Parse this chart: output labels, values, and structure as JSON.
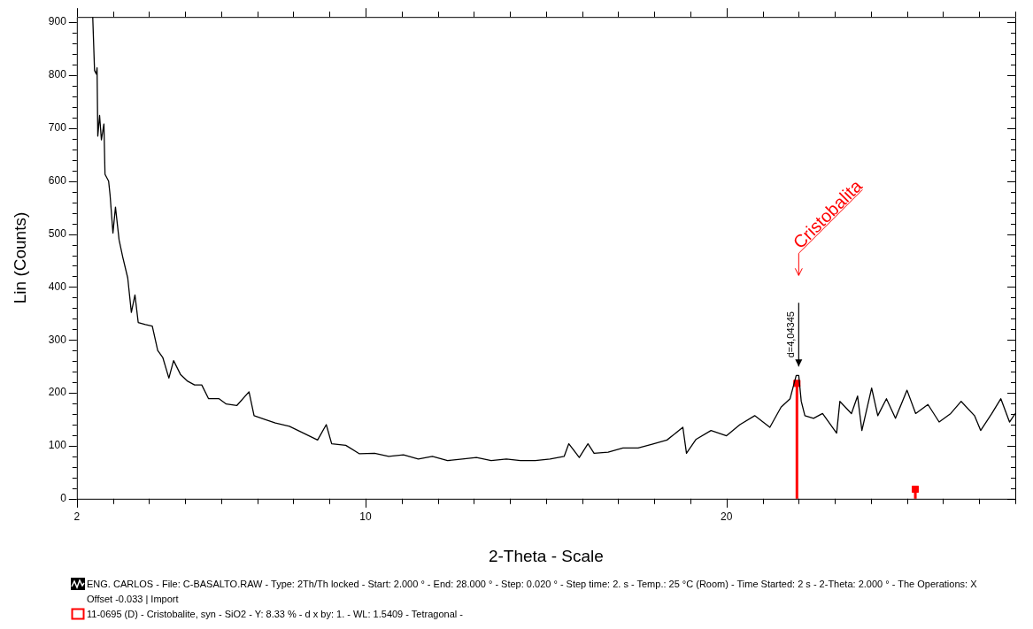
{
  "chart_data": {
    "type": "line",
    "xlabel": "2-Theta - Scale",
    "ylabel": "Lin (Counts)",
    "legend": "bottom",
    "grid": false,
    "xlim": [
      2,
      28
    ],
    "ylim": [
      0,
      910
    ],
    "xticks": [
      2,
      {
        "value": 3,
        "label": null
      },
      {
        "value": 4,
        "label": null
      },
      {
        "value": 5,
        "label": null
      },
      {
        "value": 6,
        "label": null
      },
      {
        "value": 7,
        "label": null
      },
      {
        "value": 8,
        "label": null
      },
      {
        "value": 9,
        "label": null
      },
      10,
      {
        "value": 11,
        "label": null
      },
      {
        "value": 12,
        "label": null
      },
      {
        "value": 13,
        "label": null
      },
      {
        "value": 14,
        "label": null
      },
      {
        "value": 15,
        "label": null
      },
      {
        "value": 16,
        "label": null
      },
      {
        "value": 17,
        "label": null
      },
      {
        "value": 18,
        "label": null
      },
      {
        "value": 19,
        "label": null
      },
      20,
      {
        "value": 21,
        "label": null
      },
      {
        "value": 22,
        "label": null
      },
      {
        "value": 23,
        "label": null
      },
      {
        "value": 24,
        "label": null
      },
      {
        "value": 25,
        "label": null
      },
      {
        "value": 26,
        "label": null
      },
      {
        "value": 27,
        "label": null
      },
      {
        "value": 28,
        "label": null
      }
    ],
    "yticks": [
      0,
      {
        "value": 20,
        "label": null
      },
      {
        "value": 40,
        "label": null
      },
      {
        "value": 60,
        "label": null
      },
      {
        "value": 80,
        "label": null
      },
      100,
      {
        "value": 120,
        "label": null
      },
      {
        "value": 140,
        "label": null
      },
      {
        "value": 160,
        "label": null
      },
      {
        "value": 180,
        "label": null
      },
      200,
      {
        "value": 220,
        "label": null
      },
      {
        "value": 240,
        "label": null
      },
      {
        "value": 260,
        "label": null
      },
      {
        "value": 280,
        "label": null
      },
      300,
      {
        "value": 320,
        "label": null
      },
      {
        "value": 340,
        "label": null
      },
      {
        "value": 360,
        "label": null
      },
      {
        "value": 380,
        "label": null
      },
      400,
      {
        "value": 420,
        "label": null
      },
      {
        "value": 440,
        "label": null
      },
      {
        "value": 460,
        "label": null
      },
      {
        "value": 480,
        "label": null
      },
      500,
      {
        "value": 520,
        "label": null
      },
      {
        "value": 540,
        "label": null
      },
      {
        "value": 560,
        "label": null
      },
      {
        "value": 580,
        "label": null
      },
      600,
      {
        "value": 620,
        "label": null
      },
      {
        "value": 640,
        "label": null
      },
      {
        "value": 660,
        "label": null
      },
      {
        "value": 680,
        "label": null
      },
      700,
      {
        "value": 720,
        "label": null
      },
      {
        "value": 740,
        "label": null
      },
      {
        "value": 760,
        "label": null
      },
      {
        "value": 780,
        "label": null
      },
      800,
      {
        "value": 820,
        "label": null
      },
      {
        "value": 840,
        "label": null
      },
      {
        "value": 860,
        "label": null
      },
      {
        "value": 880,
        "label": null
      },
      900
    ],
    "series": [
      {
        "name": "ENG. CARLOS - File: C-BASALTO.RAW - Type: 2Th/Th locked - Start: 2.000 ° - End: 28.000 ° - Step: 0.020 ° - Step time: 2. s - Temp.: 25 °C (Room) - Time Started: 2 s - 2-Theta: 2.000 ° - The Operations: X Offset -0.033 | Import",
        "type": "line",
        "color": "#000000",
        "x": [
          2.44,
          2.49,
          2.54,
          2.56,
          2.58,
          2.63,
          2.68,
          2.75,
          2.78,
          2.88,
          2.92,
          3.0,
          3.07,
          3.17,
          3.27,
          3.41,
          3.51,
          3.61,
          3.7,
          3.9,
          4.09,
          4.24,
          4.38,
          4.55,
          4.68,
          4.87,
          5.07,
          5.26,
          5.46,
          5.65,
          5.94,
          6.14,
          6.43,
          6.77,
          6.91,
          7.21,
          7.5,
          7.89,
          8.28,
          8.67,
          8.91,
          9.06,
          9.45,
          9.83,
          10.25,
          10.64,
          11.05,
          11.46,
          11.85,
          12.27,
          12.68,
          13.07,
          13.48,
          13.9,
          14.29,
          14.7,
          15.11,
          15.5,
          15.63,
          15.92,
          16.16,
          16.33,
          16.72,
          17.13,
          17.55,
          17.94,
          18.35,
          18.79,
          18.89,
          19.15,
          19.57,
          20.0,
          20.37,
          20.78,
          21.2,
          21.51,
          21.76,
          21.93,
          22.0,
          22.07,
          22.17,
          22.41,
          22.66,
          23.05,
          23.14,
          23.46,
          23.63,
          23.75,
          24.02,
          24.19,
          24.43,
          24.68,
          25.0,
          25.24,
          25.58,
          25.89,
          26.21,
          26.5,
          26.87,
          27.04,
          27.35,
          27.6,
          27.84,
          28.0
        ],
        "values": [
          910,
          809,
          802,
          814,
          685,
          724,
          678,
          708,
          613,
          600,
          574,
          502,
          551,
          489,
          457,
          417,
          352,
          385,
          333,
          329,
          326,
          280,
          267,
          228,
          261,
          235,
          222,
          215,
          215,
          189,
          189,
          179,
          176,
          202,
          157,
          150,
          143,
          137,
          124,
          111,
          140,
          104,
          101,
          85,
          86,
          80,
          83,
          75,
          80,
          72,
          75,
          78,
          72,
          75,
          72,
          72,
          75,
          80,
          104,
          78,
          104,
          86,
          88,
          96,
          96,
          103,
          111,
          135,
          86,
          112,
          129,
          119,
          140,
          157,
          135,
          173,
          189,
          233,
          233,
          184,
          157,
          152,
          161,
          124,
          184,
          161,
          194,
          129,
          209,
          157,
          189,
          152,
          205,
          161,
          178,
          145,
          161,
          184,
          157,
          129,
          161,
          189,
          145,
          161
        ]
      },
      {
        "name": "11-0695 (D) - Cristobalite, syn - SiO2 - Y: 8.33 % - d x by: 1. - WL: 1.5409 - Tetragonal -",
        "type": "lollipop",
        "marker": "square",
        "color": "#ff0000",
        "x": [
          21.95,
          25.23
        ],
        "values": [
          218,
          18
        ]
      }
    ],
    "annotations": [
      "Cristobalita",
      {
        "text": "d=4,04345",
        "x": 22.0,
        "y": 233
      }
    ]
  }
}
